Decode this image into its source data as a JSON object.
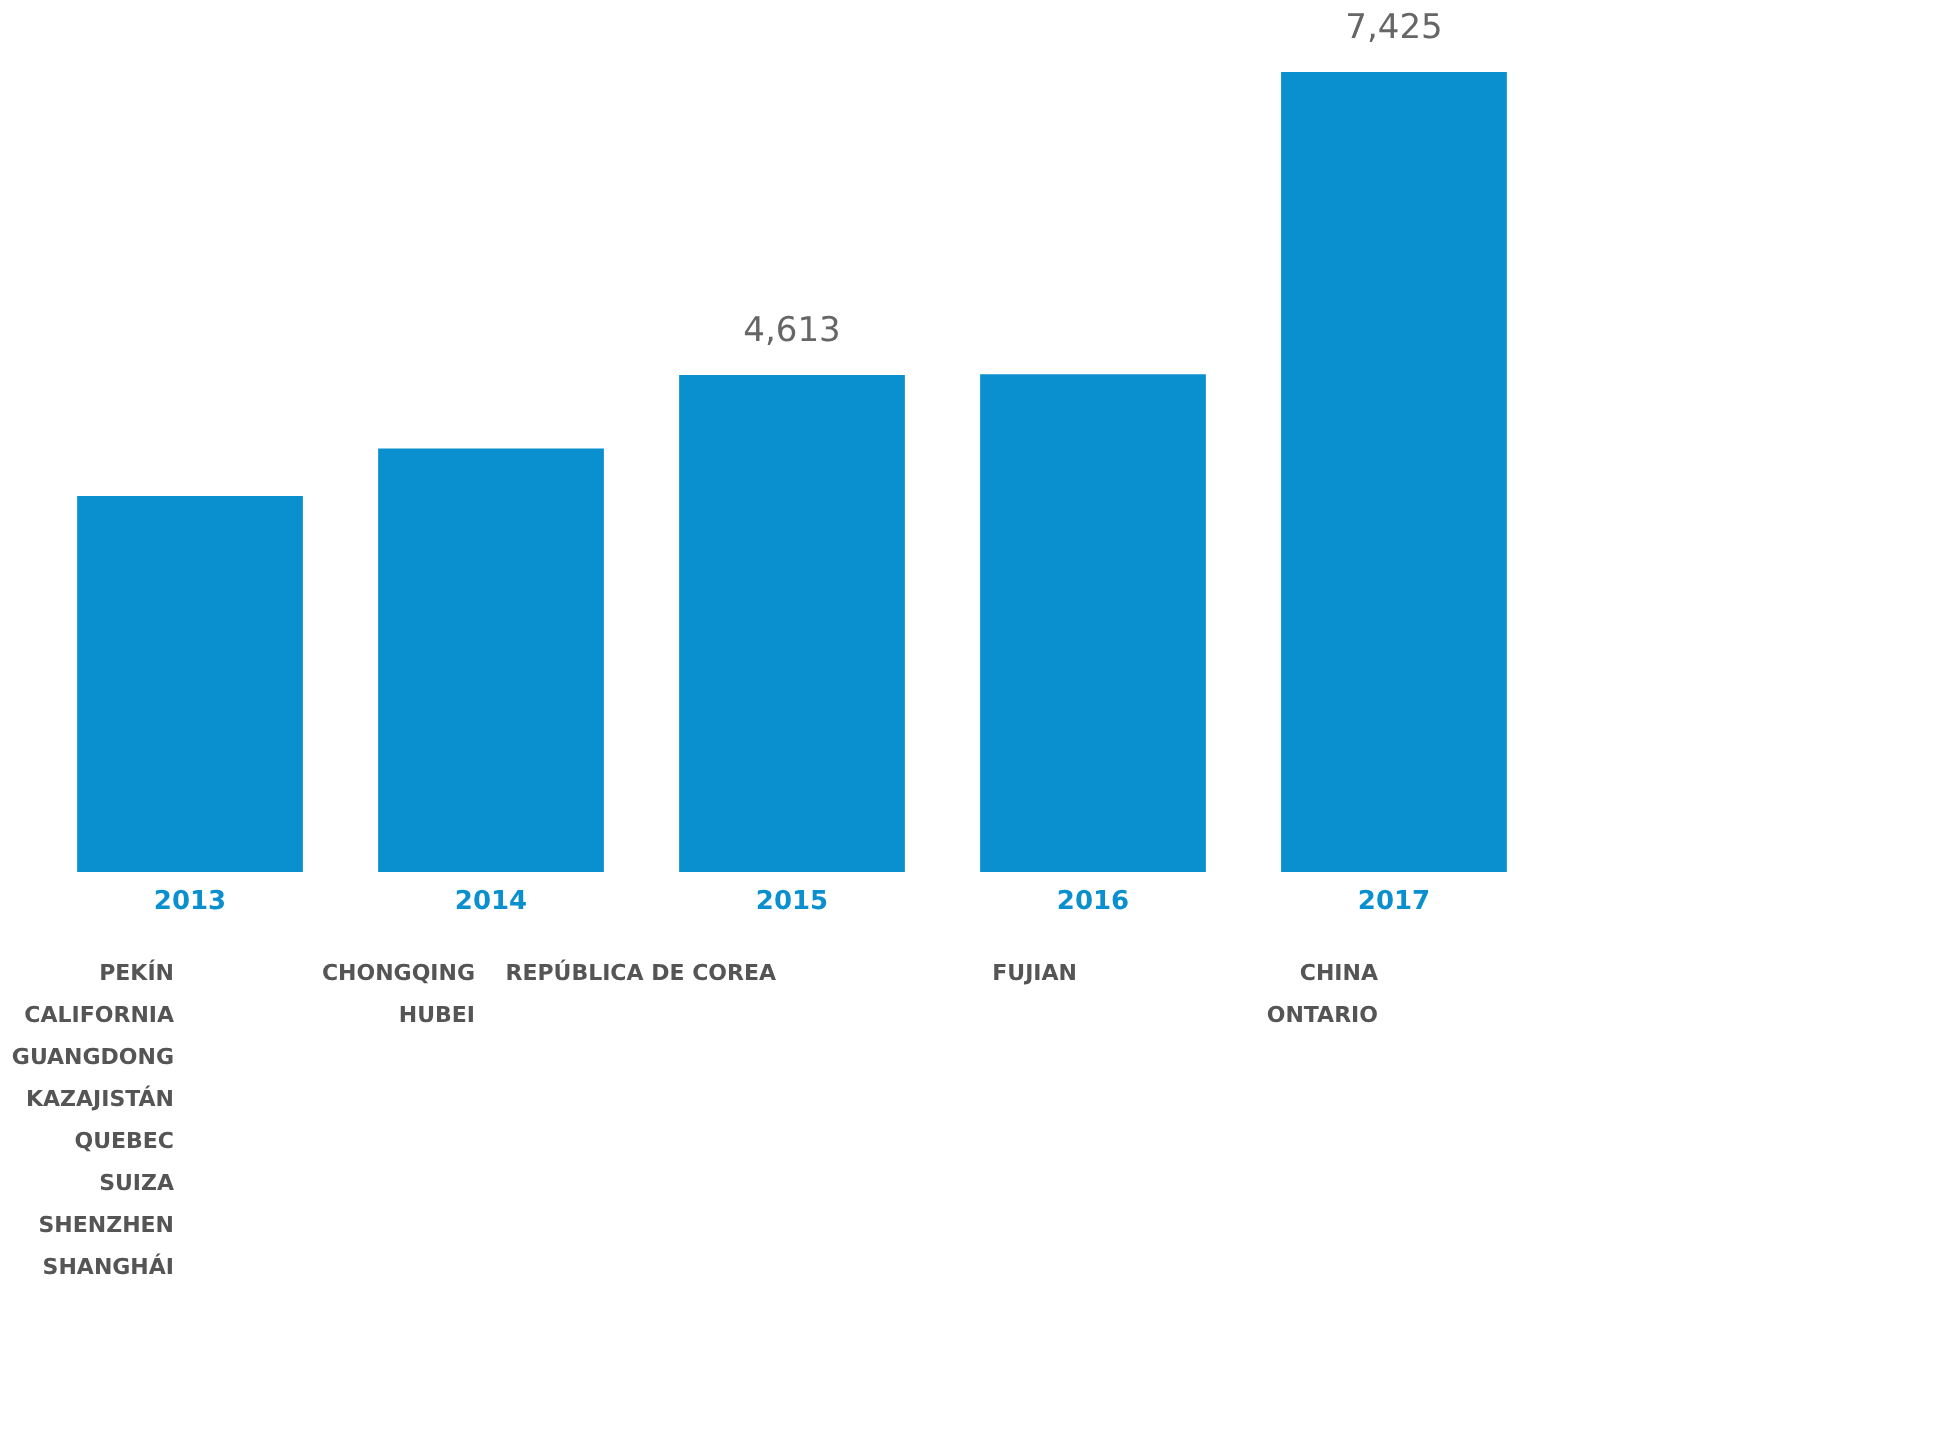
{
  "chart_data": {
    "type": "bar",
    "categories": [
      "2013",
      "2014",
      "2015",
      "2016",
      "2017"
    ],
    "series": [
      {
        "color": "#0a8fcf",
        "values": [
          3490,
          3930,
          4613,
          4620,
          7425
        ],
        "value_labels": [
          null,
          null,
          "4,613",
          null,
          "7,425"
        ]
      }
    ],
    "annotations": [
      "PEKÍN\nCALIFORNIA\nGUANGDONG\nKAZAJISTÁN\nQUEBEC\nSUIZA\nSHENZHEN\nSHANGHÁI",
      "CHONGQING\nHUBEI",
      "REPÚBLICA DE COREA",
      "FUJIAN",
      "CHINA\nONTARIO"
    ]
  }
}
